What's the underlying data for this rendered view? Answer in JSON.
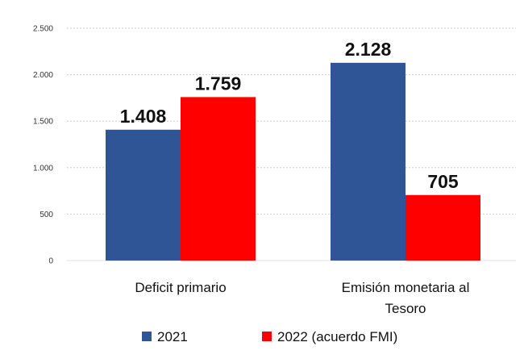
{
  "chart_data": {
    "type": "bar",
    "title": "",
    "xlabel": "",
    "ylabel": "",
    "ylim": [
      0,
      2500
    ],
    "yticks": [
      0,
      500,
      1000,
      1500,
      2000,
      2500
    ],
    "ytick_labels": [
      "0",
      "500",
      "1.000",
      "1.500",
      "2.000",
      "2.500"
    ],
    "grid": true,
    "legend_position": "bottom",
    "categories": [
      {
        "line1": "Deficit primario",
        "line2": ""
      },
      {
        "line1": "Emisión monetaria al",
        "line2": "Tesoro"
      }
    ],
    "series": [
      {
        "name": "2021",
        "color": "#2F5597",
        "values": [
          1408,
          2128
        ],
        "labels": [
          "1.408",
          "2.128"
        ]
      },
      {
        "name": "2022 (acuerdo FMI)",
        "color": "#FF0000",
        "values": [
          1759,
          705
        ],
        "labels": [
          "1.759",
          "705"
        ]
      }
    ]
  }
}
